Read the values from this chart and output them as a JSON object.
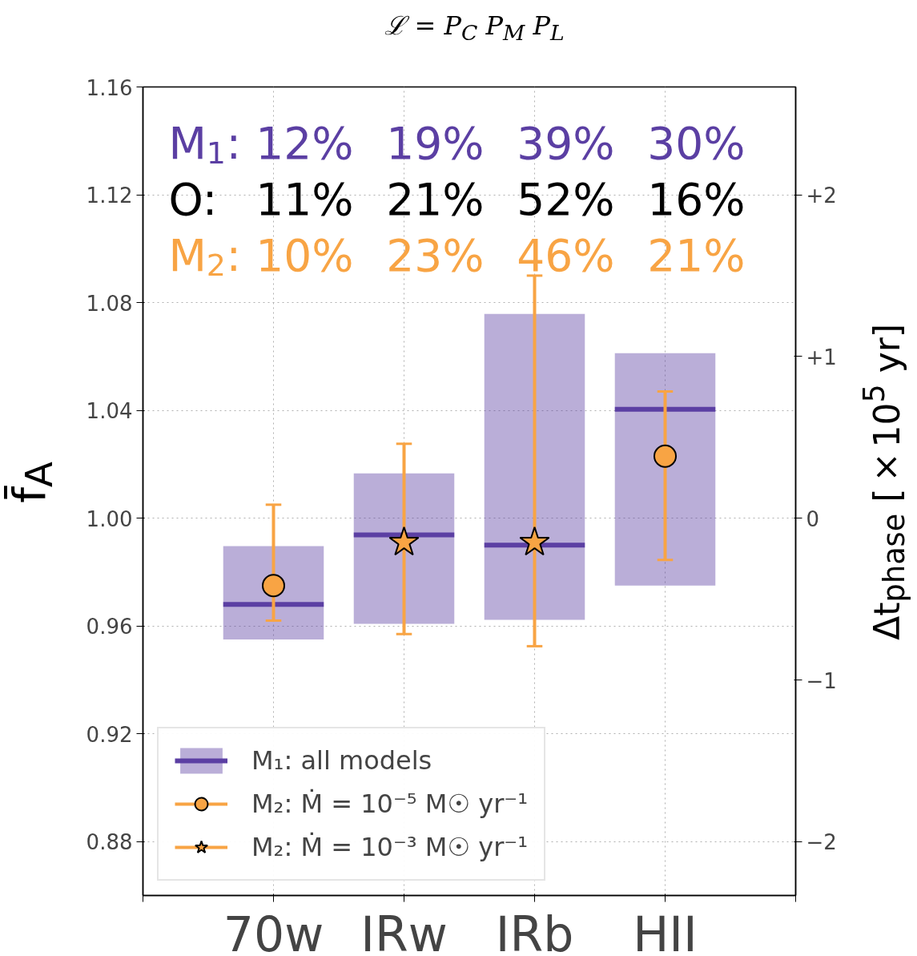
{
  "chart_data": {
    "type": "box",
    "title": "ℒ = P$_{C}$ P$_{M}$ P$_{L}$",
    "ylabel": "f̄$_{A}$",
    "y2label": "Δt$_{phase}$ [×10$^{5}$ yr]",
    "categories": [
      "70w",
      "IRw",
      "IRb",
      "HII"
    ],
    "series": [
      {
        "name": "M₁: all models",
        "color": "#5b3fa3",
        "boxes": [
          {
            "q1": 0.955,
            "median": 0.968,
            "q3": 0.9896
          },
          {
            "q1": 0.9608,
            "median": 0.9938,
            "q3": 1.0166
          },
          {
            "q1": 0.9623,
            "median": 0.99,
            "q3": 1.0758
          },
          {
            "q1": 0.975,
            "median": 1.0404,
            "q3": 1.0612
          }
        ]
      },
      {
        "name": "M₂: Ṁ = 10⁻⁵ M☉ yr⁻¹",
        "type": "scatter",
        "marker": "circle",
        "color": "#f8a444",
        "values": [
          0.975,
          null,
          null,
          1.023
        ],
        "errors": [
          [
            0.962,
            1.005
          ],
          null,
          null,
          [
            0.9845,
            1.047
          ]
        ]
      },
      {
        "name": "M₂: Ṁ = 10⁻³ M☉ yr⁻¹",
        "type": "scatter",
        "marker": "star",
        "color": "#f8a444",
        "values": [
          null,
          0.991,
          0.991,
          null
        ],
        "errors": [
          null,
          [
            0.957,
            1.0276
          ],
          [
            0.9525,
            1.09
          ],
          null
        ]
      }
    ],
    "ylim": [
      0.86,
      1.16
    ],
    "yticks": [
      0.88,
      0.92,
      0.96,
      {
        "value": 1.0,
        "label": "1.00"
      },
      1.04,
      1.08,
      1.12,
      1.16
    ],
    "y2lim": [
      -2.333,
      2.667
    ],
    "y2ticks": [
      {
        "value": -2,
        "label": "−2"
      },
      {
        "value": -1,
        "label": "−1"
      },
      0,
      {
        "value": 1,
        "label": "+1"
      },
      {
        "value": 2,
        "label": "+2"
      }
    ],
    "grid": true,
    "legend": "bottom left",
    "annotations": [
      "M$_{1}$: 12% 19% 39% 30%",
      "O: 11% 21% 52% 16%",
      "M$_{2}$: 10% 23% 46% 21%"
    ]
  }
}
